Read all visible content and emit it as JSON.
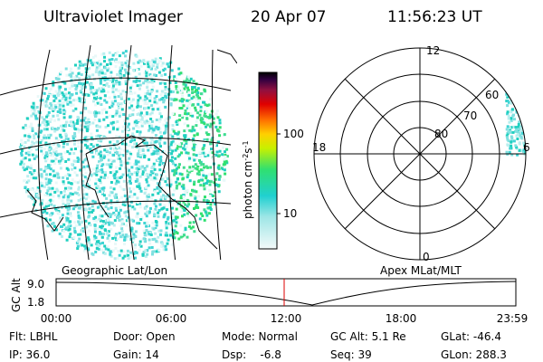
{
  "header": {
    "title": "Ultraviolet Imager",
    "date": "20 Apr 07",
    "time": "11:56:23 UT"
  },
  "colorbar": {
    "unit": "photon cm",
    "exp1": "-2",
    "mid": "s",
    "exp2": "-1",
    "ticks": [
      "100",
      "10"
    ]
  },
  "polar": {
    "hours": [
      "12",
      "18",
      "6",
      "0"
    ],
    "latitudes": [
      "80",
      "70",
      "60"
    ]
  },
  "panels": {
    "left": "Geographic Lat/Lon",
    "right": "Apex MLat/MLT"
  },
  "altitude": {
    "label": "GC Alt",
    "ticks": [
      "9.0",
      "1.8"
    ],
    "times": [
      "00:00",
      "06:00",
      "12:00",
      "18:00",
      "23:59"
    ]
  },
  "info": [
    [
      "Flt: LBHL",
      "Door: Open",
      "Mode: Normal",
      "GC Alt: 5.1 Re",
      "GLat: -46.4"
    ],
    [
      "IP: 36.0",
      "Gain: 14",
      "Dsp:    -6.8",
      "Seq: 39",
      "GLon: 288.3"
    ]
  ]
}
